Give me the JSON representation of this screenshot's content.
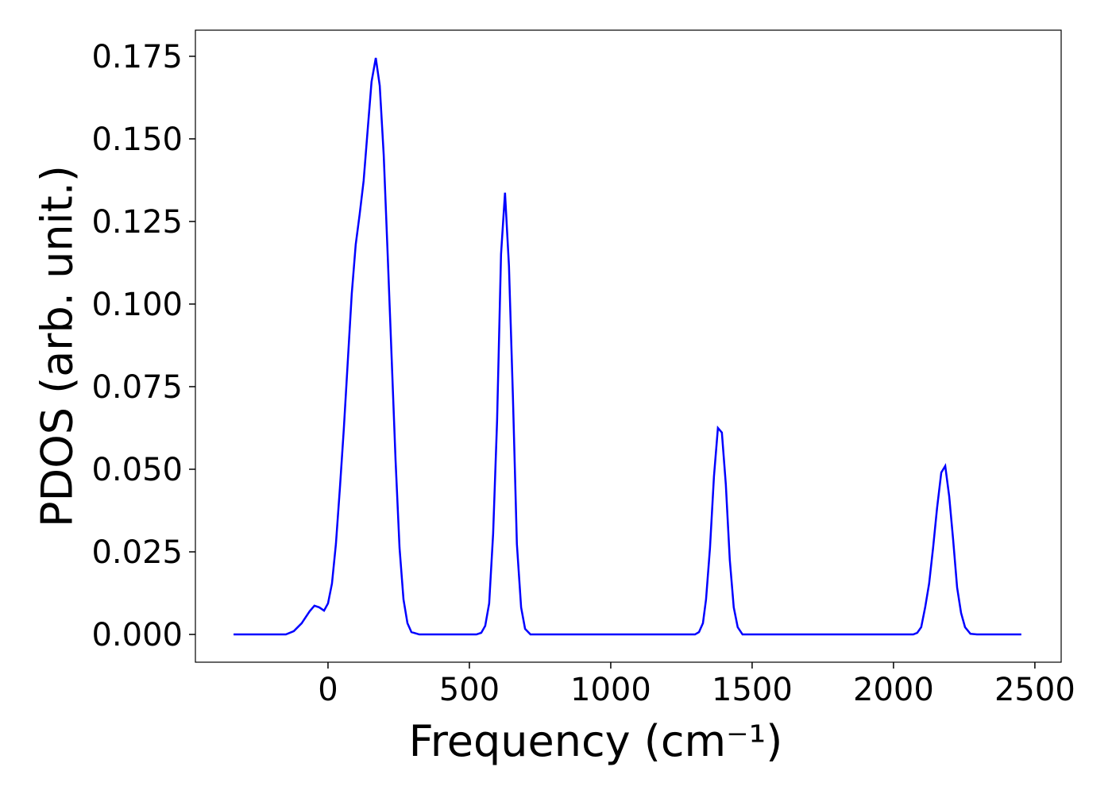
{
  "chart_data": {
    "type": "line",
    "xlabel": "Frequency (cm⁻¹)",
    "ylabel": "PDOS (arb. unit.)",
    "x": [
      -334,
      -149,
      -121,
      -93,
      -65,
      -48,
      -31,
      -14,
      0,
      14,
      28,
      42,
      56,
      70,
      84,
      98,
      112,
      126,
      140,
      154,
      169,
      183,
      197,
      211,
      225,
      239,
      253,
      267,
      281,
      295,
      323,
      525,
      542,
      556,
      570,
      584,
      598,
      612,
      626,
      640,
      654,
      668,
      683,
      697,
      716,
      1298,
      1312,
      1326,
      1337,
      1351,
      1365,
      1379,
      1393,
      1407,
      1421,
      1435,
      1449,
      1466,
      2070,
      2084,
      2098,
      2112,
      2126,
      2140,
      2154,
      2169,
      2183,
      2197,
      2211,
      2225,
      2239,
      2253,
      2272,
      2295,
      2452
    ],
    "series": [
      {
        "color": "#0000ff",
        "values": [
          0,
          0,
          0.001,
          0.0034,
          0.007,
          0.0087,
          0.0082,
          0.0072,
          0.0094,
          0.0154,
          0.0274,
          0.0442,
          0.0623,
          0.0827,
          0.1031,
          0.118,
          0.1272,
          0.1373,
          0.1524,
          0.1673,
          0.1745,
          0.1661,
          0.1452,
          0.1151,
          0.0839,
          0.0526,
          0.0262,
          0.0106,
          0.0034,
          0.0007,
          0,
          0,
          0.0005,
          0.0026,
          0.0094,
          0.0305,
          0.0647,
          0.1151,
          0.1337,
          0.1115,
          0.0719,
          0.0274,
          0.0082,
          0.0017,
          0,
          0,
          0.0007,
          0.0034,
          0.0106,
          0.0262,
          0.0478,
          0.0625,
          0.0611,
          0.0454,
          0.0226,
          0.0082,
          0.0022,
          0,
          0,
          0.0005,
          0.0022,
          0.0082,
          0.0154,
          0.0262,
          0.0382,
          0.049,
          0.051,
          0.0418,
          0.0286,
          0.0142,
          0.0065,
          0.0022,
          0.0002,
          0,
          0
        ]
      }
    ],
    "xlim": [
      -469,
      2593
    ],
    "ylim": [
      -0.0084,
      0.1829
    ],
    "xticks": [
      0,
      500,
      1000,
      1500,
      2000,
      2500
    ],
    "yticks": [
      {
        "value": 0,
        "label": "0.000"
      },
      {
        "value": 0.025,
        "label": "0.025"
      },
      {
        "value": 0.05,
        "label": "0.050"
      },
      {
        "value": 0.075,
        "label": "0.075"
      },
      {
        "value": 0.1,
        "label": "0.100"
      },
      {
        "value": 0.125,
        "label": "0.125"
      },
      {
        "value": 0.15,
        "label": "0.150"
      },
      {
        "value": 0.175,
        "label": "0.175"
      }
    ]
  }
}
